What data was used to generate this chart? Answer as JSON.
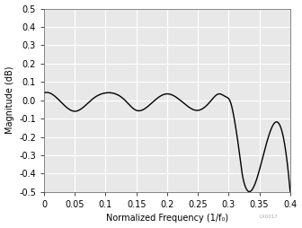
{
  "title": "",
  "xlabel": "Normalized Frequency (1/f₀)",
  "ylabel": "Magnitude (dB)",
  "xlim": [
    0,
    0.4
  ],
  "ylim": [
    -0.5,
    0.5
  ],
  "xticks": [
    0,
    0.05,
    0.1,
    0.15,
    0.2,
    0.25,
    0.3,
    0.35,
    0.4
  ],
  "yticks": [
    -0.5,
    -0.4,
    -0.3,
    -0.2,
    -0.1,
    0.0,
    0.1,
    0.2,
    0.3,
    0.4,
    0.5
  ],
  "line_color": "#000000",
  "line_width": 1.0,
  "background_color": "#e8e8e8",
  "grid_color": "#ffffff",
  "font_size": 7,
  "label_font_size": 7,
  "watermark": "LX0017",
  "key_f": [
    0,
    0.02,
    0.05,
    0.08,
    0.1,
    0.13,
    0.15,
    0.18,
    0.2,
    0.225,
    0.25,
    0.268,
    0.285,
    0.295,
    0.303,
    0.308,
    0.313,
    0.318,
    0.322,
    0.326,
    0.33,
    0.4
  ],
  "key_mag": [
    0.04,
    0.015,
    -0.06,
    0.01,
    0.04,
    0.005,
    -0.055,
    0.0,
    0.035,
    -0.01,
    -0.055,
    -0.015,
    0.035,
    0.02,
    -0.01,
    -0.08,
    -0.18,
    -0.3,
    -0.4,
    -0.46,
    -0.49,
    -0.5
  ]
}
